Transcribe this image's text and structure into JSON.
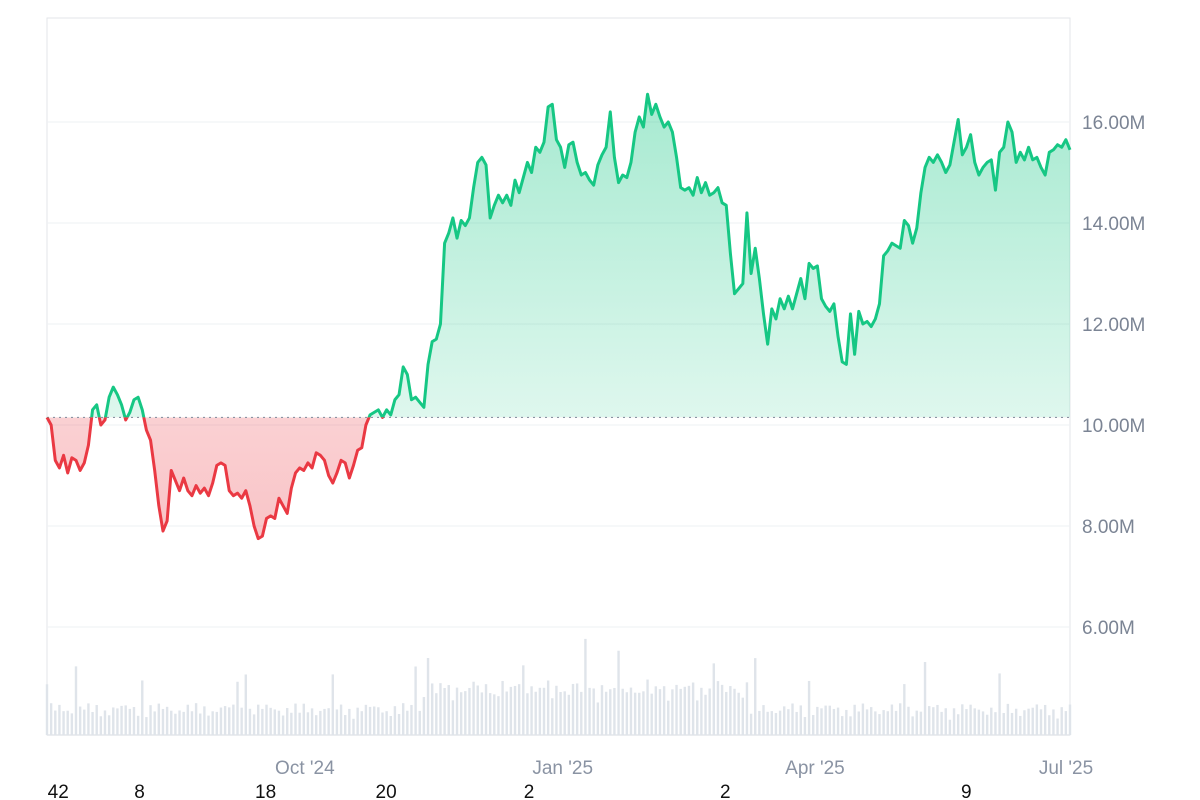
{
  "chart_data": {
    "type": "area",
    "title": "",
    "xlabel": "",
    "ylabel": "",
    "baseline": 10150000,
    "ylim": [
      4000000,
      18000000
    ],
    "y_ticks": [
      "6.00M",
      "8.00M",
      "10.00M",
      "12.00M",
      "14.00M",
      "16.00M"
    ],
    "y_tick_values": [
      6000000,
      8000000,
      10000000,
      12000000,
      14000000,
      16000000
    ],
    "x_ticks": [
      "Oct '24",
      "Jan '25",
      "Apr '25",
      "Jul '25"
    ],
    "x_tick_days": [
      92,
      184,
      274,
      365
    ],
    "footer_labels": [
      "42",
      "8",
      "18",
      "20",
      "2",
      "2",
      "9"
    ],
    "footer_label_days": [
      4,
      33,
      78,
      121,
      172,
      242,
      328
    ],
    "x_start": "2024-07-01",
    "x_end": "2025-07-04",
    "colors": {
      "up": "#16c784",
      "down": "#ea3943",
      "volume": "#dfe4ea",
      "grid": "#eef0f3"
    },
    "price_points": [
      [
        0,
        10.15
      ],
      [
        1,
        10.0
      ],
      [
        2,
        9.3
      ],
      [
        3,
        9.15
      ],
      [
        4,
        9.4
      ],
      [
        5,
        9.05
      ],
      [
        6,
        9.35
      ],
      [
        7,
        9.3
      ],
      [
        8,
        9.1
      ],
      [
        9,
        9.25
      ],
      [
        10,
        9.6
      ],
      [
        11,
        10.3
      ],
      [
        12,
        10.4
      ],
      [
        13,
        10.0
      ],
      [
        14,
        10.1
      ],
      [
        15,
        10.55
      ],
      [
        16,
        10.75
      ],
      [
        17,
        10.6
      ],
      [
        18,
        10.4
      ],
      [
        19,
        10.1
      ],
      [
        20,
        10.25
      ],
      [
        21,
        10.5
      ],
      [
        22,
        10.55
      ],
      [
        23,
        10.3
      ],
      [
        24,
        9.9
      ],
      [
        25,
        9.7
      ],
      [
        26,
        9.1
      ],
      [
        27,
        8.4
      ],
      [
        28,
        7.9
      ],
      [
        29,
        8.1
      ],
      [
        30,
        9.1
      ],
      [
        31,
        8.9
      ],
      [
        32,
        8.7
      ],
      [
        33,
        8.95
      ],
      [
        34,
        8.7
      ],
      [
        35,
        8.6
      ],
      [
        36,
        8.8
      ],
      [
        37,
        8.65
      ],
      [
        38,
        8.75
      ],
      [
        39,
        8.6
      ],
      [
        40,
        8.85
      ],
      [
        41,
        9.2
      ],
      [
        42,
        9.25
      ],
      [
        43,
        9.2
      ],
      [
        44,
        8.7
      ],
      [
        45,
        8.6
      ],
      [
        46,
        8.65
      ],
      [
        47,
        8.55
      ],
      [
        48,
        8.7
      ],
      [
        49,
        8.4
      ],
      [
        50,
        8.0
      ],
      [
        51,
        7.75
      ],
      [
        52,
        7.8
      ],
      [
        53,
        8.15
      ],
      [
        54,
        8.2
      ],
      [
        55,
        8.15
      ],
      [
        56,
        8.55
      ],
      [
        57,
        8.4
      ],
      [
        58,
        8.25
      ],
      [
        59,
        8.75
      ],
      [
        60,
        9.05
      ],
      [
        61,
        9.15
      ],
      [
        62,
        9.1
      ],
      [
        63,
        9.25
      ],
      [
        64,
        9.15
      ],
      [
        65,
        9.45
      ],
      [
        66,
        9.4
      ],
      [
        67,
        9.3
      ],
      [
        68,
        9.0
      ],
      [
        69,
        8.85
      ],
      [
        70,
        9.05
      ],
      [
        71,
        9.3
      ],
      [
        72,
        9.25
      ],
      [
        73,
        8.95
      ],
      [
        74,
        9.2
      ],
      [
        75,
        9.5
      ],
      [
        76,
        9.55
      ],
      [
        77,
        10.0
      ],
      [
        78,
        10.2
      ],
      [
        79,
        10.25
      ],
      [
        80,
        10.3
      ],
      [
        81,
        10.15
      ],
      [
        82,
        10.3
      ],
      [
        83,
        10.2
      ],
      [
        84,
        10.5
      ],
      [
        85,
        10.6
      ],
      [
        86,
        11.15
      ],
      [
        87,
        11.0
      ],
      [
        88,
        10.5
      ],
      [
        89,
        10.55
      ],
      [
        90,
        10.45
      ],
      [
        91,
        10.35
      ],
      [
        92,
        11.2
      ],
      [
        93,
        11.65
      ],
      [
        94,
        11.7
      ],
      [
        95,
        12.0
      ],
      [
        96,
        13.6
      ],
      [
        97,
        13.8
      ],
      [
        98,
        14.1
      ],
      [
        99,
        13.7
      ],
      [
        100,
        14.05
      ],
      [
        101,
        13.95
      ],
      [
        102,
        14.1
      ],
      [
        103,
        14.7
      ],
      [
        104,
        15.2
      ],
      [
        105,
        15.3
      ],
      [
        106,
        15.15
      ],
      [
        107,
        14.1
      ],
      [
        108,
        14.35
      ],
      [
        109,
        14.55
      ],
      [
        110,
        14.4
      ],
      [
        111,
        14.55
      ],
      [
        112,
        14.35
      ],
      [
        113,
        14.85
      ],
      [
        114,
        14.6
      ],
      [
        115,
        14.9
      ],
      [
        116,
        15.2
      ],
      [
        117,
        15.0
      ],
      [
        118,
        15.5
      ],
      [
        119,
        15.4
      ],
      [
        120,
        15.6
      ],
      [
        121,
        16.3
      ],
      [
        122,
        16.35
      ],
      [
        123,
        15.65
      ],
      [
        124,
        15.5
      ],
      [
        125,
        15.1
      ],
      [
        126,
        15.55
      ],
      [
        127,
        15.6
      ],
      [
        128,
        15.2
      ],
      [
        129,
        14.95
      ],
      [
        130,
        15.0
      ],
      [
        131,
        14.85
      ],
      [
        132,
        14.75
      ],
      [
        133,
        15.15
      ],
      [
        134,
        15.35
      ],
      [
        135,
        15.5
      ],
      [
        136,
        16.2
      ],
      [
        137,
        15.3
      ],
      [
        138,
        14.8
      ],
      [
        139,
        14.95
      ],
      [
        140,
        14.9
      ],
      [
        141,
        15.2
      ],
      [
        142,
        15.8
      ],
      [
        143,
        16.1
      ],
      [
        144,
        15.9
      ],
      [
        145,
        16.55
      ],
      [
        146,
        16.15
      ],
      [
        147,
        16.35
      ],
      [
        148,
        16.1
      ],
      [
        149,
        15.9
      ],
      [
        150,
        16.0
      ],
      [
        151,
        15.8
      ],
      [
        152,
        15.3
      ],
      [
        153,
        14.7
      ],
      [
        154,
        14.65
      ],
      [
        155,
        14.7
      ],
      [
        156,
        14.55
      ],
      [
        157,
        14.9
      ],
      [
        158,
        14.6
      ],
      [
        159,
        14.8
      ],
      [
        160,
        14.55
      ],
      [
        161,
        14.6
      ],
      [
        162,
        14.7
      ],
      [
        163,
        14.4
      ],
      [
        164,
        14.35
      ],
      [
        165,
        13.4
      ],
      [
        166,
        12.6
      ],
      [
        167,
        12.7
      ],
      [
        168,
        12.8
      ],
      [
        169,
        14.2
      ],
      [
        170,
        13.0
      ],
      [
        171,
        13.5
      ],
      [
        172,
        12.9
      ],
      [
        173,
        12.2
      ],
      [
        174,
        11.6
      ],
      [
        175,
        12.3
      ],
      [
        176,
        12.1
      ],
      [
        177,
        12.5
      ],
      [
        178,
        12.3
      ],
      [
        179,
        12.55
      ],
      [
        180,
        12.3
      ],
      [
        181,
        12.6
      ],
      [
        182,
        12.9
      ],
      [
        183,
        12.5
      ],
      [
        184,
        13.2
      ],
      [
        185,
        13.1
      ],
      [
        186,
        13.15
      ],
      [
        187,
        12.5
      ],
      [
        188,
        12.35
      ],
      [
        189,
        12.25
      ],
      [
        190,
        12.4
      ],
      [
        191,
        11.75
      ],
      [
        192,
        11.25
      ],
      [
        193,
        11.2
      ],
      [
        194,
        12.2
      ],
      [
        195,
        11.4
      ],
      [
        196,
        12.25
      ],
      [
        197,
        12.0
      ],
      [
        198,
        12.05
      ],
      [
        199,
        11.95
      ],
      [
        200,
        12.1
      ],
      [
        201,
        12.4
      ],
      [
        202,
        13.35
      ],
      [
        203,
        13.45
      ],
      [
        204,
        13.6
      ],
      [
        205,
        13.55
      ],
      [
        206,
        13.5
      ],
      [
        207,
        14.05
      ],
      [
        208,
        13.95
      ],
      [
        209,
        13.6
      ],
      [
        210,
        13.9
      ],
      [
        211,
        14.6
      ],
      [
        212,
        15.1
      ],
      [
        213,
        15.3
      ],
      [
        214,
        15.2
      ],
      [
        215,
        15.35
      ],
      [
        216,
        15.2
      ],
      [
        217,
        15.0
      ],
      [
        218,
        15.15
      ],
      [
        219,
        15.6
      ],
      [
        220,
        16.05
      ],
      [
        221,
        15.35
      ],
      [
        222,
        15.5
      ],
      [
        223,
        15.75
      ],
      [
        224,
        15.2
      ],
      [
        225,
        14.95
      ],
      [
        226,
        15.1
      ],
      [
        227,
        15.2
      ],
      [
        228,
        15.25
      ],
      [
        229,
        14.65
      ],
      [
        230,
        15.4
      ],
      [
        231,
        15.5
      ],
      [
        232,
        16.0
      ],
      [
        233,
        15.8
      ],
      [
        234,
        15.2
      ],
      [
        235,
        15.4
      ],
      [
        236,
        15.25
      ],
      [
        237,
        15.5
      ],
      [
        238,
        15.25
      ],
      [
        239,
        15.3
      ],
      [
        240,
        15.1
      ],
      [
        241,
        14.95
      ],
      [
        242,
        15.4
      ],
      [
        243,
        15.45
      ],
      [
        244,
        15.55
      ],
      [
        245,
        15.5
      ],
      [
        246,
        15.65
      ],
      [
        247,
        15.45
      ]
    ]
  }
}
